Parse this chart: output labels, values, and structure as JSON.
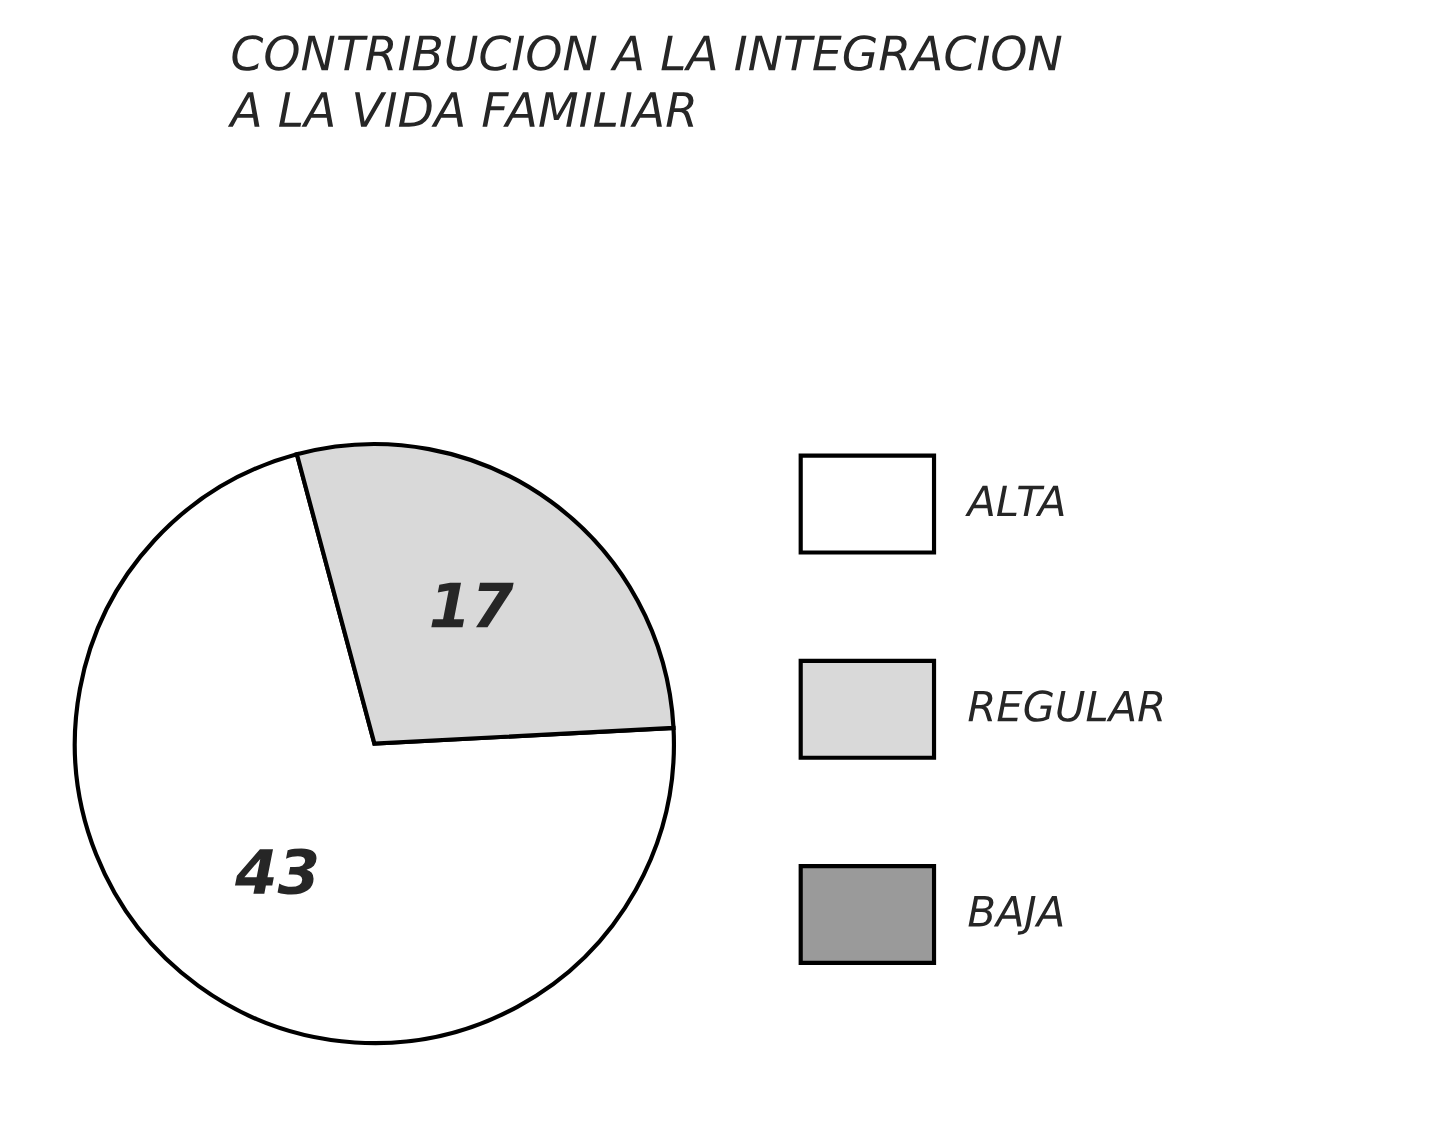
{
  "chart_data": {
    "type": "pie",
    "title": "CONTRIBUCION A LA INTEGRACION\nA LA VIDA FAMILIAR",
    "categories": [
      "ALTA",
      "REGULAR",
      "BAJA"
    ],
    "values": [
      43,
      17,
      0
    ],
    "value_labels": [
      "43",
      "17",
      null
    ],
    "colors": [
      "#ffffff",
      "#d9d9d9",
      "#9a9a9a"
    ],
    "legend": "right"
  }
}
